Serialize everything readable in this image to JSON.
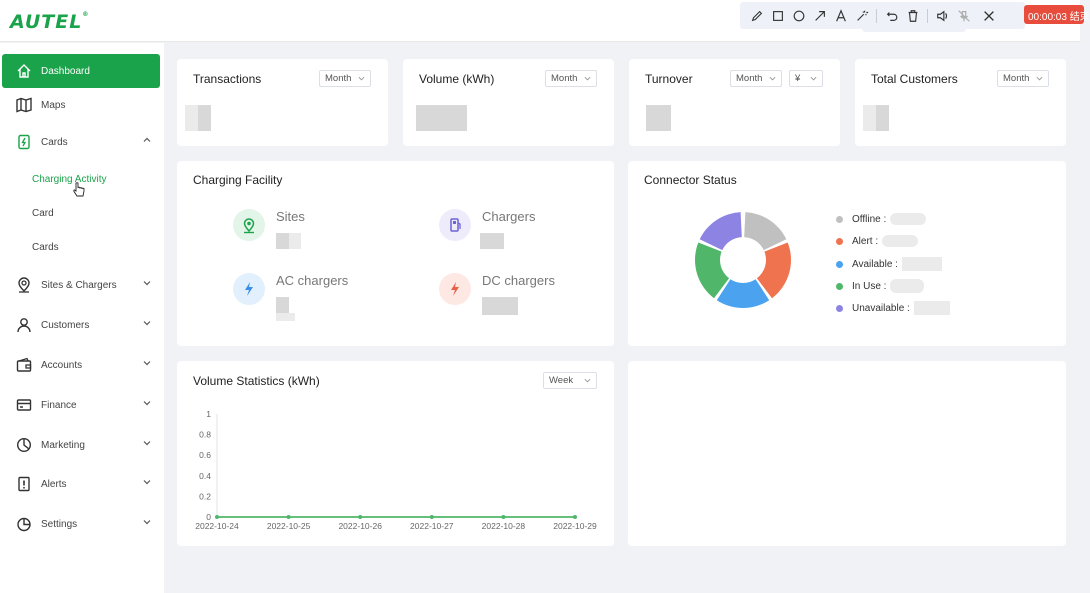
{
  "app": {
    "logo_text": "AUTEL"
  },
  "annotation_toolbar": {
    "tools": [
      "pencil-icon",
      "rectangle-icon",
      "circle-icon",
      "arrow-icon",
      "text-icon",
      "magic-wand-icon",
      "undo-icon",
      "trash-icon",
      "speaker-icon",
      "microphone-muted-icon",
      "close-icon"
    ],
    "recording_label": "00:00:03 结束"
  },
  "sidebar": {
    "items": [
      {
        "label": "Dashboard",
        "icon": "home-icon",
        "active": true
      },
      {
        "label": "Maps",
        "icon": "map-icon"
      },
      {
        "label": "Cards",
        "icon": "card-icon",
        "expanded": true
      },
      {
        "label": "Sites & Chargers",
        "icon": "location-pin-icon"
      },
      {
        "label": "Customers",
        "icon": "user-icon"
      },
      {
        "label": "Accounts",
        "icon": "wallet-icon"
      },
      {
        "label": "Finance",
        "icon": "credit-card-icon"
      },
      {
        "label": "Marketing",
        "icon": "pie-chart-icon"
      },
      {
        "label": "Alerts",
        "icon": "alert-icon"
      },
      {
        "label": "Settings",
        "icon": "settings-pie-icon"
      }
    ],
    "cards_sub": [
      {
        "label": "Charging Activity",
        "active": true
      },
      {
        "label": "Card"
      },
      {
        "label": "Cards"
      }
    ]
  },
  "stats": [
    {
      "title": "Transactions",
      "period": "Month"
    },
    {
      "title": "Volume (kWh)",
      "period": "Month"
    },
    {
      "title": "Turnover",
      "period": "Month",
      "currency": "¥"
    },
    {
      "title": "Total Customers",
      "period": "Month"
    }
  ],
  "charging_facility": {
    "title": "Charging Facility",
    "items": [
      {
        "label": "Sites",
        "icon": "site-pin-icon",
        "color": "#1aa34a"
      },
      {
        "label": "Chargers",
        "icon": "charger-icon",
        "color": "#6c63d6"
      },
      {
        "label": "AC chargers",
        "icon": "ac-charger-icon",
        "color": "#3b8fe8"
      },
      {
        "label": "DC chargers",
        "icon": "dc-charger-icon",
        "color": "#e8604a"
      }
    ]
  },
  "connector_status": {
    "title": "Connector Status",
    "legend": [
      {
        "label": "Offline :",
        "color": "#c0c0c0"
      },
      {
        "label": "Alert :",
        "color": "#f0734f"
      },
      {
        "label": "Available :",
        "color": "#4ba3f0"
      },
      {
        "label": "In Use :",
        "color": "#50b76a"
      },
      {
        "label": "Unavailable :",
        "color": "#8c83e3"
      }
    ]
  },
  "volume_statistics": {
    "title": "Volume Statistics (kWh)",
    "period": "Week"
  },
  "chart_data": {
    "type": "line",
    "title": "Volume Statistics (kWh)",
    "x": [
      "2022-10-24",
      "2022-10-25",
      "2022-10-26",
      "2022-10-27",
      "2022-10-28",
      "2022-10-29"
    ],
    "series": [
      {
        "values": [
          0,
          0,
          0,
          0,
          0,
          0
        ],
        "color": "#50b76a"
      }
    ],
    "yticks": [
      "1",
      "0.8",
      "0.6",
      "0.4",
      "0.2",
      "0"
    ],
    "ylim": [
      0,
      1
    ],
    "grid": false
  }
}
